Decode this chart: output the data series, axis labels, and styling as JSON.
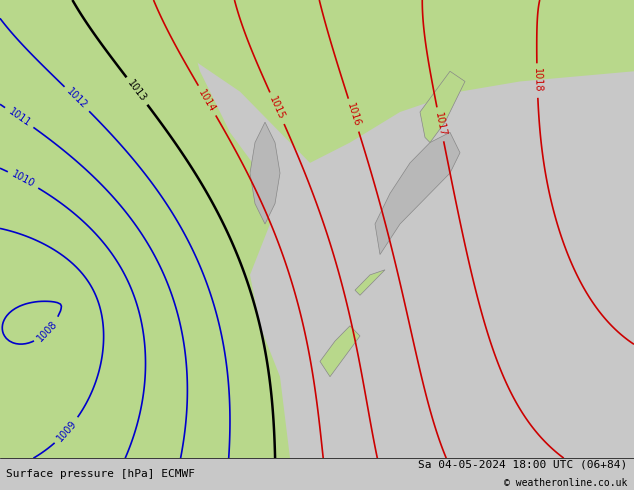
{
  "title_left": "Surface pressure [hPa] ECMWF",
  "title_right": "Sa 04-05-2024 18:00 UTC (06+84)",
  "copyright": "© weatheronline.co.uk",
  "bg_color": "#d0d0d0",
  "land_green_color": "#b8d88b",
  "land_gray_color": "#c8c8c8",
  "sea_color": "#e8e8e8",
  "blue_contour_color": "#0000cc",
  "red_contour_color": "#cc0000",
  "black_contour_color": "#000000",
  "contour_linewidth": 1.2,
  "label_fontsize": 7,
  "bottom_fontsize": 8,
  "figsize": [
    6.34,
    4.9
  ],
  "dpi": 100,
  "pressure_base": 1013,
  "pressure_interval": 1,
  "xlim": [
    0,
    634
  ],
  "ylim": [
    0,
    460
  ]
}
